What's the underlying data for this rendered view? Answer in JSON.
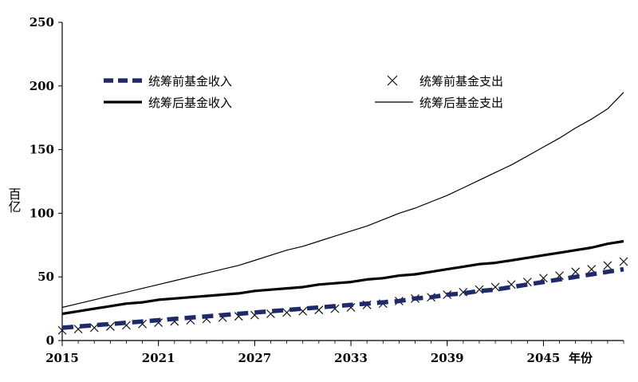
{
  "chart_data": {
    "type": "line",
    "title": "",
    "xlabel": "年份",
    "ylabel": "百亿",
    "ylim": [
      0,
      250
    ],
    "xlim": [
      2015,
      2050
    ],
    "yticks": [
      0,
      50,
      100,
      150,
      200,
      250
    ],
    "xticks": [
      2015,
      2021,
      2027,
      2033,
      2039,
      2045
    ],
    "x": [
      2015,
      2016,
      2017,
      2018,
      2019,
      2020,
      2021,
      2022,
      2023,
      2024,
      2025,
      2026,
      2027,
      2028,
      2029,
      2030,
      2031,
      2032,
      2033,
      2034,
      2035,
      2036,
      2037,
      2038,
      2039,
      2040,
      2041,
      2042,
      2043,
      2044,
      2045,
      2046,
      2047,
      2048,
      2049,
      2050
    ],
    "series": [
      {
        "name": "统筹前基金收入",
        "style": "thick-dashed",
        "color": "#1f2a6b",
        "values": [
          10,
          11,
          12,
          13,
          14,
          15,
          16,
          17,
          18,
          19,
          20,
          21,
          22,
          23,
          24,
          25,
          26,
          27,
          28,
          29,
          30,
          31,
          33,
          34,
          36,
          37,
          39,
          40,
          42,
          44,
          46,
          48,
          50,
          52,
          54,
          56
        ]
      },
      {
        "name": "统筹前基金支出",
        "style": "x-marker",
        "color": "#000000",
        "values": [
          8,
          9,
          10,
          11,
          12,
          13,
          14,
          15,
          16,
          17,
          18,
          19,
          20,
          21,
          22,
          23,
          24,
          25,
          26,
          28,
          29,
          31,
          33,
          34,
          36,
          38,
          40,
          42,
          44,
          46,
          49,
          51,
          54,
          56,
          59,
          62
        ]
      },
      {
        "name": "统筹后基金收入",
        "style": "thick-solid",
        "color": "#000000",
        "values": [
          21,
          23,
          25,
          27,
          29,
          30,
          32,
          33,
          34,
          35,
          36,
          37,
          39,
          40,
          41,
          42,
          44,
          45,
          46,
          48,
          49,
          51,
          52,
          54,
          56,
          58,
          60,
          61,
          63,
          65,
          67,
          69,
          71,
          73,
          76,
          78
        ]
      },
      {
        "name": "统筹后基金支出",
        "style": "thin-solid",
        "color": "#000000",
        "values": [
          26,
          29,
          32,
          35,
          38,
          41,
          44,
          47,
          50,
          53,
          56,
          59,
          63,
          67,
          71,
          74,
          78,
          82,
          86,
          90,
          95,
          100,
          104,
          109,
          114,
          120,
          126,
          132,
          138,
          145,
          152,
          159,
          167,
          174,
          182,
          195
        ]
      }
    ],
    "legend": {
      "placement": "top",
      "items": [
        "统筹前基金收入",
        "统筹前基金支出",
        "统筹后基金收入",
        "统筹后基金支出"
      ]
    },
    "grid": false
  }
}
